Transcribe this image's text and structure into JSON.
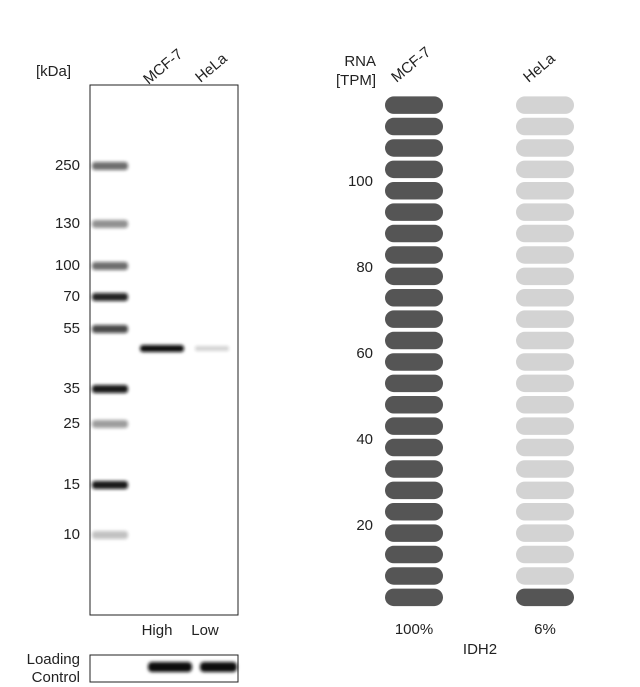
{
  "blot": {
    "unit_label": "[kDa]",
    "lanes": [
      "MCF-7",
      "HeLa"
    ],
    "markers": [
      250,
      130,
      100,
      70,
      55,
      35,
      25,
      15,
      10
    ],
    "expression": [
      "High",
      "Low"
    ],
    "loading_control": [
      "Loading",
      "Control"
    ]
  },
  "rna": {
    "axis_label": [
      "RNA",
      "[TPM]"
    ],
    "samples": [
      "MCF-7",
      "HeLa"
    ],
    "ticks": [
      20,
      40,
      60,
      80,
      100
    ],
    "percentages": [
      {
        "value": 100,
        "label": "100%"
      },
      {
        "value": 6,
        "label": "6%"
      }
    ],
    "gene": "IDH2"
  }
}
